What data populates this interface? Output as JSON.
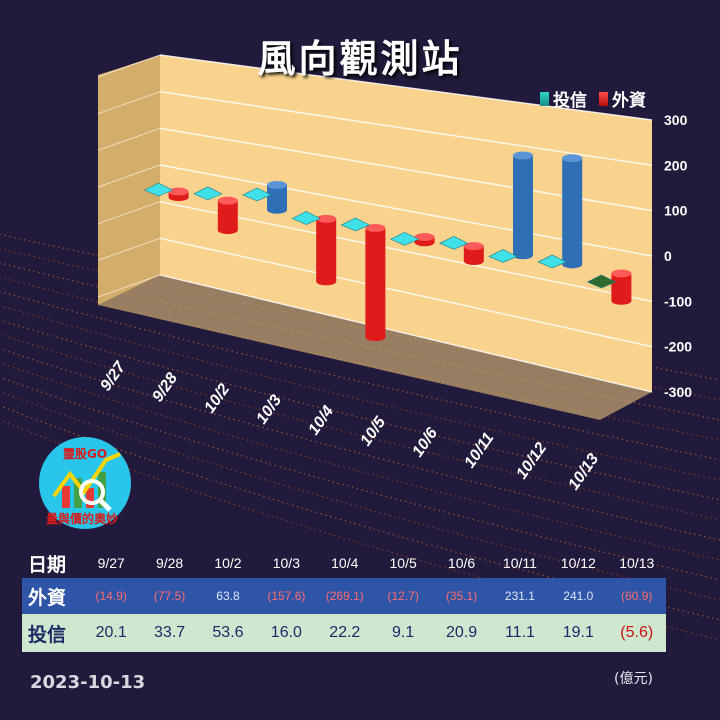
{
  "title": "風向觀測站",
  "legend": [
    {
      "name": "投信",
      "color": "#2fd3c6"
    },
    {
      "name": "外資",
      "color": "#e01b1b"
    }
  ],
  "colors": {
    "background": "#221a3c",
    "wall": "#f9d38e",
    "foreign": "#e01b1b",
    "foreign_pos": "#2e6fb5",
    "trust": "#3fe0e8",
    "trust_neg": "#2f6b2f"
  },
  "chart_data": {
    "type": "bar",
    "categories": [
      "9/27",
      "9/28",
      "10/2",
      "10/3",
      "10/4",
      "10/5",
      "10/6",
      "10/11",
      "10/12",
      "10/13"
    ],
    "series": [
      {
        "name": "外資",
        "values": [
          -14.9,
          -77.5,
          63.8,
          -157.6,
          -269.1,
          -12.7,
          -35.1,
          231.1,
          241.0,
          -60.9
        ]
      },
      {
        "name": "投信",
        "values": [
          20.1,
          33.7,
          53.6,
          16.0,
          22.2,
          9.1,
          20.9,
          11.1,
          19.1,
          -5.6
        ]
      }
    ],
    "ylim": [
      -300,
      300
    ],
    "yticks": [
      "300",
      "200",
      "100",
      "0",
      "-100",
      "-200",
      "-300"
    ],
    "grid": true,
    "legend_position": "top-right"
  },
  "logo": {
    "badge": "靈股GO",
    "caption": "量與價的奧妙"
  },
  "table": {
    "date_label": "日期",
    "dates": [
      "9/27",
      "9/28",
      "10/2",
      "10/3",
      "10/4",
      "10/5",
      "10/6",
      "10/11",
      "10/12",
      "10/13"
    ],
    "foreign_label": "外資",
    "foreign": [
      "(14.9)",
      "(77.5)",
      "63.8",
      "(157.6)",
      "(269.1)",
      "(12.7)",
      "(35.1)",
      "231.1",
      "241.0",
      "(60.9)"
    ],
    "trust_label": "投信",
    "trust": [
      "20.1",
      "33.7",
      "53.6",
      "16.0",
      "22.2",
      "9.1",
      "20.9",
      "11.1",
      "19.1",
      "(5.6)"
    ]
  },
  "footer": {
    "date": "2023-10-13",
    "unit": "(億元)"
  }
}
